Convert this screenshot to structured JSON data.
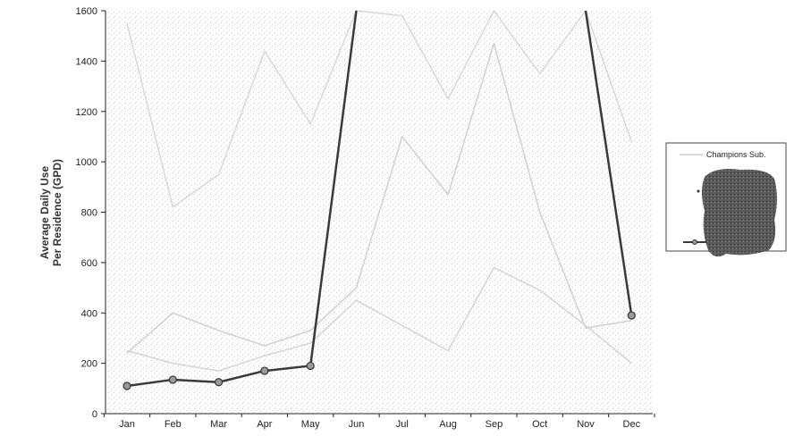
{
  "chart_data": {
    "type": "line",
    "title": "",
    "xlabel": "",
    "ylabel_lines": [
      "Average Daily Use",
      "Per Residence (GPD)"
    ],
    "categories": [
      "Jan",
      "Feb",
      "Mar",
      "Apr",
      "May",
      "Jun",
      "Jul",
      "Aug",
      "Sep",
      "Oct",
      "Nov",
      "Dec"
    ],
    "ylim": [
      0,
      1600
    ],
    "yticks": [
      "0",
      "200",
      "400",
      "600",
      "800",
      "1000",
      "1200",
      "1400",
      "1600"
    ],
    "grid": false,
    "legend_position": "right",
    "series": [
      {
        "name": "Champions Sub.",
        "color": "#d8d8d8",
        "marker": false,
        "values": [
          1550,
          820,
          950,
          1440,
          1150,
          1600,
          1580,
          1250,
          1600,
          1350,
          1600,
          1080
        ]
      },
      {
        "name": "",
        "color": "#d0d0d0",
        "marker": false,
        "values": [
          240,
          400,
          330,
          270,
          330,
          500,
          1100,
          870,
          1470,
          800,
          340,
          370
        ]
      },
      {
        "name": "",
        "color": "#d4d4d4",
        "marker": false,
        "values": [
          250,
          200,
          170,
          230,
          280,
          450,
          350,
          250,
          580,
          490,
          350,
          200
        ]
      },
      {
        "name": "",
        "color": "#3a3a3a",
        "marker": true,
        "values": [
          110,
          135,
          125,
          170,
          190,
          1600,
          null,
          null,
          null,
          null,
          1600,
          390
        ]
      }
    ]
  }
}
